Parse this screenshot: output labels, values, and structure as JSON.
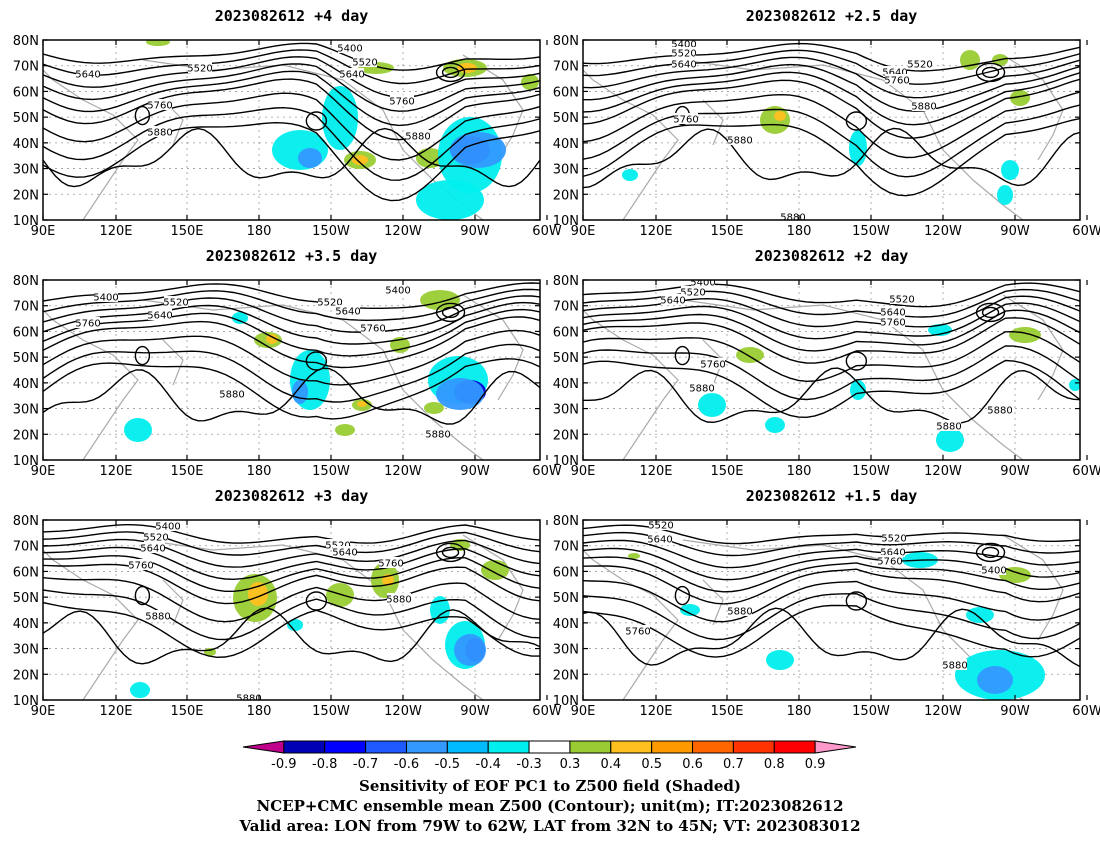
{
  "panels": [
    {
      "title": "2023082612 +4 day",
      "contour_labels": [
        [
          "5400",
          350,
          48
        ],
        [
          "5520",
          200,
          68
        ],
        [
          "5640",
          88,
          74
        ],
        [
          "5520",
          365,
          62
        ],
        [
          "5640",
          352,
          74
        ],
        [
          "5760",
          160,
          105
        ],
        [
          "5760",
          402,
          101
        ],
        [
          "5880",
          160,
          132
        ],
        [
          "5880",
          418,
          136
        ]
      ],
      "blobs": [
        [
          "#00eeee",
          300,
          150,
          28,
          20
        ],
        [
          "#00eeee",
          340,
          118,
          18,
          32
        ],
        [
          "#3399ff",
          310,
          158,
          12,
          10
        ],
        [
          "#99cc33",
          360,
          160,
          16,
          9
        ],
        [
          "#ffc020",
          360,
          160,
          8,
          5
        ],
        [
          "#99cc33",
          430,
          158,
          14,
          10
        ],
        [
          "#00eeee",
          470,
          155,
          32,
          38
        ],
        [
          "#00eeee",
          450,
          200,
          34,
          20
        ],
        [
          "#0000dd",
          470,
          150,
          20,
          14
        ],
        [
          "#3399ff",
          478,
          150,
          28,
          18
        ],
        [
          "#99cc33",
          465,
          68,
          22,
          9
        ],
        [
          "#ffc020",
          467,
          68,
          10,
          5
        ],
        [
          "#99cc33",
          376,
          68,
          18,
          6
        ],
        [
          "#99cc33",
          530,
          82,
          9,
          8
        ],
        [
          "#99cc33",
          158,
          42,
          12,
          4
        ]
      ]
    },
    {
      "title": "2023082612 +2.5 day",
      "contour_labels": [
        [
          "5400",
          684,
          44
        ],
        [
          "5520",
          684,
          53
        ],
        [
          "5640",
          684,
          64
        ],
        [
          "5520",
          920,
          64
        ],
        [
          "5640",
          895,
          72
        ],
        [
          "5760",
          897,
          80
        ],
        [
          "5760",
          686,
          119
        ],
        [
          "5880",
          740,
          140
        ],
        [
          "5880",
          924,
          106
        ],
        [
          "5880",
          793,
          217
        ]
      ],
      "blobs": [
        [
          "#99cc33",
          775,
          120,
          15,
          14
        ],
        [
          "#ffc020",
          780,
          116,
          6,
          5
        ],
        [
          "#00eeee",
          858,
          148,
          9,
          18
        ],
        [
          "#00eeee",
          1010,
          170,
          9,
          10
        ],
        [
          "#00eeee",
          1005,
          195,
          8,
          10
        ],
        [
          "#00eeee",
          630,
          175,
          8,
          6
        ],
        [
          "#99cc33",
          1020,
          98,
          10,
          8
        ],
        [
          "#99cc33",
          970,
          60,
          10,
          10
        ],
        [
          "#99cc33",
          1000,
          60,
          8,
          6
        ]
      ]
    },
    {
      "title": "2023082612 +3.5 day",
      "contour_labels": [
        [
          "5400",
          106,
          297
        ],
        [
          "5520",
          176,
          302
        ],
        [
          "5640",
          160,
          315
        ],
        [
          "5520",
          330,
          302
        ],
        [
          "5640",
          348,
          311
        ],
        [
          "5760",
          88,
          323
        ],
        [
          "5760",
          373,
          328
        ],
        [
          "5400",
          398,
          290
        ],
        [
          "5880",
          232,
          394
        ],
        [
          "5880",
          438,
          434
        ]
      ],
      "blobs": [
        [
          "#00eeee",
          310,
          380,
          20,
          30
        ],
        [
          "#3399ff",
          300,
          392,
          8,
          12
        ],
        [
          "#99cc33",
          268,
          340,
          14,
          8
        ],
        [
          "#ffc020",
          272,
          339,
          6,
          5
        ],
        [
          "#99cc33",
          362,
          405,
          10,
          6
        ],
        [
          "#ffc020",
          362,
          404,
          5,
          3
        ],
        [
          "#99cc33",
          345,
          430,
          10,
          6
        ],
        [
          "#00eeee",
          458,
          380,
          30,
          24
        ],
        [
          "#0000dd",
          470,
          392,
          16,
          12
        ],
        [
          "#3399ff",
          460,
          394,
          24,
          16
        ],
        [
          "#99cc33",
          440,
          300,
          20,
          10
        ],
        [
          "#99cc33",
          400,
          345,
          10,
          8
        ],
        [
          "#99cc33",
          434,
          408,
          10,
          6
        ],
        [
          "#00eeee",
          138,
          430,
          14,
          12
        ],
        [
          "#00eeee",
          240,
          318,
          8,
          6
        ]
      ]
    },
    {
      "title": "2023082612 +2 day",
      "contour_labels": [
        [
          "5400",
          703,
          282
        ],
        [
          "5520",
          693,
          292
        ],
        [
          "5640",
          673,
          300
        ],
        [
          "5520",
          902,
          299
        ],
        [
          "5640",
          893,
          312
        ],
        [
          "5760",
          893,
          322
        ],
        [
          "5760",
          713,
          364
        ],
        [
          "5880",
          702,
          388
        ],
        [
          "5880",
          1000,
          410
        ],
        [
          "5880",
          949,
          426
        ]
      ],
      "blobs": [
        [
          "#99cc33",
          750,
          355,
          14,
          8
        ],
        [
          "#00eeee",
          712,
          405,
          14,
          12
        ],
        [
          "#00eeee",
          775,
          425,
          10,
          8
        ],
        [
          "#00eeee",
          858,
          390,
          8,
          10
        ],
        [
          "#99cc33",
          1025,
          335,
          16,
          8
        ],
        [
          "#00eeee",
          940,
          330,
          12,
          6
        ],
        [
          "#00eeee",
          950,
          440,
          14,
          12
        ],
        [
          "#00eeee",
          1075,
          385,
          6,
          6
        ]
      ]
    },
    {
      "title": "2023082612 +3 day",
      "contour_labels": [
        [
          "5400",
          168,
          526
        ],
        [
          "5520",
          156,
          537
        ],
        [
          "5640",
          153,
          548
        ],
        [
          "5520",
          338,
          545
        ],
        [
          "5640",
          345,
          552
        ],
        [
          "5760",
          141,
          565
        ],
        [
          "5760",
          391,
          563
        ],
        [
          "5880",
          399,
          599
        ],
        [
          "5880",
          158,
          616
        ],
        [
          "5880",
          249,
          698
        ]
      ],
      "blobs": [
        [
          "#99cc33",
          255,
          598,
          22,
          24
        ],
        [
          "#ffc020",
          258,
          594,
          10,
          12
        ],
        [
          "#99cc33",
          340,
          595,
          14,
          12
        ],
        [
          "#99cc33",
          385,
          580,
          14,
          18
        ],
        [
          "#ffc020",
          388,
          580,
          6,
          6
        ],
        [
          "#00eeee",
          440,
          610,
          10,
          14
        ],
        [
          "#00eeee",
          465,
          645,
          20,
          24
        ],
        [
          "#0000dd",
          475,
          650,
          10,
          12
        ],
        [
          "#3399ff",
          470,
          650,
          16,
          16
        ],
        [
          "#99cc33",
          495,
          570,
          14,
          10
        ],
        [
          "#99cc33",
          460,
          545,
          10,
          6
        ],
        [
          "#00eeee",
          140,
          690,
          10,
          8
        ],
        [
          "#00eeee",
          295,
          625,
          8,
          6
        ],
        [
          "#99cc33",
          210,
          652,
          6,
          4
        ]
      ]
    },
    {
      "title": "2023082612 +1.5 day",
      "contour_labels": [
        [
          "5520",
          661,
          525
        ],
        [
          "5640",
          660,
          539
        ],
        [
          "5520",
          894,
          538
        ],
        [
          "5640",
          893,
          552
        ],
        [
          "5760",
          890,
          561
        ],
        [
          "5400",
          994,
          570
        ],
        [
          "5880",
          740,
          611
        ],
        [
          "5760",
          638,
          631
        ],
        [
          "5880",
          955,
          665
        ]
      ],
      "blobs": [
        [
          "#00eeee",
          1000,
          675,
          45,
          25
        ],
        [
          "#3399ff",
          995,
          680,
          18,
          14
        ],
        [
          "#00eeee",
          980,
          615,
          14,
          8
        ],
        [
          "#00eeee",
          920,
          560,
          18,
          8
        ],
        [
          "#00eeee",
          780,
          660,
          14,
          10
        ],
        [
          "#99cc33",
          1015,
          575,
          16,
          8
        ],
        [
          "#99cc33",
          634,
          556,
          6,
          3
        ],
        [
          "#00eeee",
          690,
          610,
          10,
          6
        ]
      ]
    }
  ],
  "axes": {
    "lat_ticks": [
      "80N",
      "70N",
      "60N",
      "50N",
      "40N",
      "30N",
      "20N",
      "10N"
    ],
    "lon_ticks": [
      "90E",
      "120E",
      "150E",
      "180",
      "150W",
      "120W",
      "90W",
      "60W"
    ]
  },
  "colorbar": {
    "colors": [
      "#c0008c",
      "#0000b4",
      "#0000ff",
      "#1e5aff",
      "#3399ff",
      "#00bbff",
      "#00eeee",
      "#ffffff",
      "#99cc33",
      "#ffc020",
      "#ff9900",
      "#ff6600",
      "#ff3300",
      "#ff0000",
      "#ff99cc"
    ],
    "labels": [
      "-0.9",
      "-0.8",
      "-0.7",
      "-0.6",
      "-0.5",
      "-0.4",
      "-0.3",
      "0.3",
      "0.4",
      "0.5",
      "0.6",
      "0.7",
      "0.8",
      "0.9"
    ]
  },
  "caption": {
    "line1": "Sensitivity of EOF PC1 to Z500 field (Shaded)",
    "line2": "NCEP+CMC ensemble mean Z500 (Contour); unit(m); IT:2023082612",
    "line3": "Valid area: LON from 79W to 62W, LAT from 32N to 45N; VT: 2023083012"
  }
}
